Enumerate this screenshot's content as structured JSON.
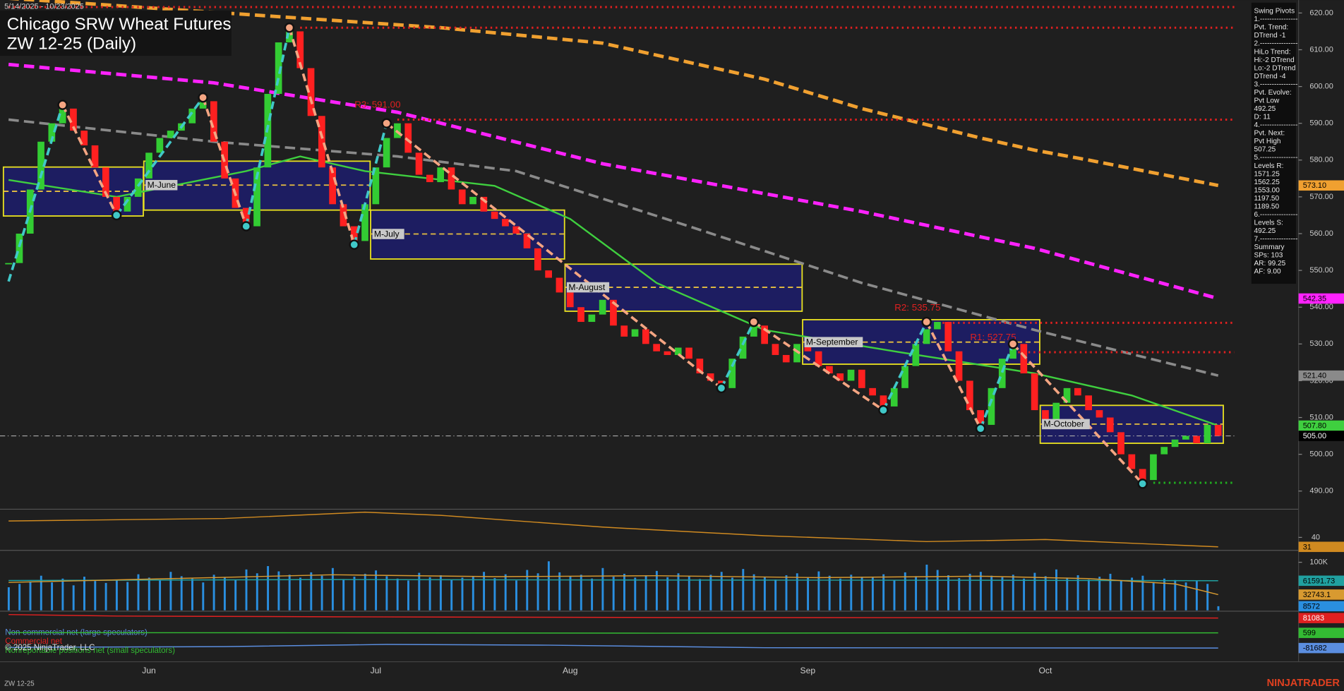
{
  "header": {
    "date_range": "5/14/2025 - 10/23/2025",
    "title": "Chicago SRW Wheat Futures",
    "subtitle": "ZW 12-25 (Daily)"
  },
  "chart_data": {
    "type": "candlestick",
    "categories": [
      null,
      null,
      null,
      null,
      null,
      null,
      null,
      null,
      null,
      null,
      null,
      null,
      null,
      "Jun",
      null,
      null,
      null,
      null,
      null,
      null,
      null,
      null,
      null,
      null,
      null,
      null,
      null,
      null,
      null,
      null,
      null,
      null,
      null,
      null,
      "Jul",
      null,
      null,
      null,
      null,
      null,
      null,
      null,
      null,
      null,
      null,
      null,
      null,
      null,
      null,
      null,
      null,
      null,
      "Aug",
      null,
      null,
      null,
      null,
      null,
      null,
      null,
      null,
      null,
      null,
      null,
      null,
      null,
      null,
      null,
      null,
      null,
      null,
      null,
      null,
      null,
      "Sep",
      null,
      null,
      null,
      null,
      null,
      null,
      null,
      null,
      null,
      null,
      null,
      null,
      null,
      null,
      null,
      null,
      null,
      null,
      null,
      null,
      null,
      "Oct",
      null,
      null,
      null,
      null,
      null,
      null,
      null,
      null,
      null,
      null,
      null,
      null,
      null,
      null,
      null,
      null
    ],
    "values": [
      552,
      560,
      572,
      585,
      590,
      594,
      588,
      584,
      578,
      570,
      566,
      570,
      575,
      582,
      586,
      588,
      590,
      594,
      596,
      585,
      575,
      567,
      562,
      578,
      598,
      612,
      615,
      605,
      592,
      578,
      568,
      562,
      558,
      568,
      578,
      586,
      590,
      582,
      576,
      574,
      578,
      572,
      568,
      570,
      566,
      564,
      562,
      560,
      556,
      550,
      548,
      544,
      540,
      536,
      538,
      542,
      535,
      532,
      534,
      530,
      528,
      527,
      529,
      526,
      522,
      520,
      518,
      526,
      532,
      535,
      530,
      527,
      525,
      530,
      528,
      524,
      522,
      520,
      523,
      518,
      516,
      513,
      518,
      524,
      530,
      534,
      536,
      528,
      520,
      512,
      508,
      518,
      526,
      530,
      522,
      512,
      508,
      514,
      518,
      516,
      512,
      510,
      506,
      500,
      496,
      493,
      500,
      502,
      504,
      505,
      503,
      508,
      505
    ],
    "up_color": "#33cc33",
    "down_color": "#ff2020",
    "ylim": [
      485.3,
      623.5
    ],
    "yticks": [
      {
        "value": 490,
        "label": "490.00"
      },
      {
        "value": 500,
        "label": "500.00"
      },
      {
        "value": 510,
        "label": "510.00"
      },
      {
        "value": 520,
        "label": "520.00"
      },
      {
        "value": 530,
        "label": "530.00"
      },
      {
        "value": 540,
        "label": "540.00"
      },
      {
        "value": 550,
        "label": "550.00"
      },
      {
        "value": 560,
        "label": "560.00"
      },
      {
        "value": 570,
        "label": "570.00"
      },
      {
        "value": 580,
        "label": "580.00"
      },
      {
        "value": 590,
        "label": "590.00"
      },
      {
        "value": 600,
        "label": "600.00"
      },
      {
        "value": 610,
        "label": "610.00"
      },
      {
        "value": 620,
        "label": "620.00"
      }
    ],
    "moving_averages": [
      {
        "color": "#f0a030",
        "width": 4,
        "x": [
          0,
          20,
          40,
          55,
          70,
          79,
          90,
          95,
          100,
          112
        ],
        "values": [
          624,
          620,
          616,
          611.8,
          602,
          594,
          586,
          582.7,
          580,
          573.1
        ],
        "last": {
          "value": 573.1,
          "label": "573.10"
        }
      },
      {
        "color": "#ff22ff",
        "width": 4,
        "x": [
          0,
          19,
          36,
          55,
          79,
          95,
          112
        ],
        "values": [
          606,
          601,
          593,
          579,
          566,
          556,
          542.35
        ],
        "last": {
          "value": 542.35,
          "label": "542.35"
        }
      },
      {
        "color": "#8a8a8a",
        "width": 3,
        "x": [
          0,
          19,
          36,
          47,
          63,
          79,
          95,
          112
        ],
        "values": [
          591,
          585,
          581,
          577,
          562,
          546.6,
          533.8,
          521.4
        ],
        "last": {
          "value": 521.4,
          "label": "521.40"
        }
      },
      {
        "color": "#3fcf3f",
        "width": 2,
        "x": [
          0,
          10,
          22,
          27,
          33,
          45,
          52,
          60,
          70,
          82,
          95,
          104,
          112
        ],
        "values": [
          574.6,
          570,
          577,
          581,
          577,
          573,
          564,
          546.6,
          533.8,
          528,
          522,
          516,
          507.8
        ],
        "last": {
          "value": 507.8,
          "label": "507.80"
        }
      }
    ],
    "last_price": {
      "value": 505,
      "label": "505.00"
    },
    "levels": [
      {
        "value": 621.6,
        "x": 0,
        "color": "#e02020"
      },
      {
        "value": 616,
        "x": 27,
        "color": "#e02020"
      },
      {
        "label": "R3: 591.00",
        "value": 591,
        "x": 36,
        "color": "#e02020"
      },
      {
        "label": "R2: 535.75",
        "value": 535.75,
        "x": 86,
        "color": "#e02020"
      },
      {
        "label": "R1: 527.75",
        "value": 527.75,
        "x": 93,
        "color": "#e02020"
      },
      {
        "value": 492.25,
        "x": 106,
        "color": "#20b020"
      }
    ],
    "zigzag": {
      "x": [
        0,
        5,
        10,
        18,
        22,
        26,
        32,
        35,
        66,
        69,
        81,
        85,
        90,
        93,
        105
      ],
      "values": [
        547,
        595,
        565,
        597,
        562,
        616,
        557,
        590,
        518,
        536,
        512,
        536,
        507,
        530,
        492
      ],
      "up_color": "#40c8c8",
      "down_color": "#f4a582"
    },
    "value_areas": [
      {
        "high": 578.1,
        "low": 564.8,
        "mid": 571.5
      },
      {
        "label": "M-June",
        "high": 579.7,
        "low": 566.4,
        "mid": 573.2
      },
      {
        "label": "M-July",
        "high": 566.4,
        "low": 553.1,
        "mid": 559.9
      },
      {
        "label": "M-August",
        "high": 551.7,
        "low": 538.9,
        "mid": 545.4
      },
      {
        "label": "M-September",
        "high": 536.6,
        "low": 524.5,
        "mid": 530.5
      },
      {
        "label": "M-October",
        "high": 513.3,
        "low": 503.0,
        "mid": 508.2
      }
    ],
    "oscillator": {
      "color": "#d08a20",
      "ylim": [
        28.5,
        66
      ],
      "yticks": [
        40
      ],
      "x": [
        0,
        20,
        33,
        40,
        55,
        70,
        85,
        96,
        105,
        112
      ],
      "values": [
        55.6,
        58,
        64,
        61,
        49.8,
        41.6,
        36,
        38,
        34,
        31
      ],
      "last": {
        "value": 31,
        "label": "31"
      }
    },
    "volume": {
      "color": "#2a8fe0",
      "ylim": [
        0,
        123000
      ],
      "yticks": [
        {
          "value": 100000,
          "label": "100K"
        }
      ],
      "values": [
        48000,
        55000,
        60000,
        72000,
        58000,
        66000,
        52000,
        70000,
        61000,
        57000,
        64000,
        59000,
        75000,
        68000,
        62000,
        80000,
        71000,
        66000,
        58000,
        74000,
        69000,
        63000,
        85000,
        77000,
        92000,
        81000,
        74000,
        68000,
        79000,
        72000,
        88000,
        65000,
        70000,
        76000,
        83000,
        71000,
        66000,
        62000,
        78000,
        69000,
        73000,
        64000,
        68000,
        71000,
        80000,
        67000,
        75000,
        62000,
        84000,
        77000,
        102000,
        79000,
        71000,
        74000,
        66000,
        88000,
        70000,
        76000,
        68000,
        73000,
        82000,
        69000,
        77000,
        71000,
        65000,
        74000,
        80000,
        68000,
        86000,
        75000,
        70000,
        64000,
        73000,
        77000,
        69000,
        81000,
        72000,
        66000,
        74000,
        70000,
        68000,
        75000,
        63000,
        79000,
        71000,
        95000,
        84000,
        73000,
        67000,
        76000,
        80000,
        72000,
        69000,
        74000,
        66000,
        78000,
        71000,
        85000,
        68000,
        73000,
        64000,
        70000,
        76000,
        62000,
        68000,
        72000,
        59000,
        66000,
        63000,
        58000,
        61000,
        55000,
        8572
      ],
      "last": {
        "value": 8572,
        "label": "8572"
      },
      "lines": [
        {
          "color": "#20a0a0",
          "x": [
            0,
            30,
            60,
            90,
            112
          ],
          "values": [
            62000,
            64000,
            63000,
            62500,
            61591.73
          ],
          "last": {
            "value": 61591.73,
            "label": "61591.73"
          }
        },
        {
          "color": "#d89a30",
          "x": [
            0,
            15,
            30,
            45,
            60,
            75,
            90,
            100,
            108,
            112
          ],
          "values": [
            58000,
            66000,
            74000,
            70000,
            72000,
            68000,
            71000,
            66000,
            55000,
            32743.1
          ],
          "last": {
            "value": 32743.1,
            "label": "32743.1"
          }
        }
      ]
    },
    "cot": {
      "ylim": [
        -146800,
        113640
      ],
      "series": [
        {
          "name": "Non-commercial net (large speculators)",
          "color": "#5b8ee0",
          "x": [
            0,
            20,
            35,
            50,
            70,
            112
          ],
          "values": [
            -78000,
            -74000,
            -62000,
            -66000,
            -80000,
            -81682
          ],
          "last": {
            "value": -81682,
            "label": "-81682"
          }
        },
        {
          "name": "Commercial net",
          "color": "#e02020",
          "x": [
            0,
            10,
            30,
            60,
            90,
            112
          ],
          "values": [
            100000,
            92000,
            88000,
            84000,
            83000,
            81083
          ],
          "last": {
            "value": 81083,
            "label": "81083"
          }
        },
        {
          "name": "Nonreportable positions net (small speculators)",
          "color": "#33bb33",
          "x": [
            0,
            30,
            60,
            90,
            112
          ],
          "values": [
            2000,
            1000,
            -1000,
            500,
            599
          ],
          "last": {
            "value": 599,
            "label": "599"
          }
        }
      ]
    }
  },
  "pivot_panel": {
    "lines": [
      "Swing Pivots",
      "1.----------------",
      "Pvt. Trend:",
      "DTrend -1",
      "2.----------------",
      "HiLo Trend:",
      "Hi:-2 DTrend",
      "Lo:-2 DTrend",
      "DTrend -4",
      "3.----------------",
      "Pvt. Evolve:",
      "Pvt Low",
      "492.25",
      "D: 11",
      "4.----------------",
      "Pvt. Next:",
      "Pvt High",
      "507.25",
      "5.----------------",
      "Levels R:",
      "1571.25",
      "1562.25",
      "1553.00",
      "1197.50",
      "1189.50",
      "6.----------------",
      "Levels S:",
      "492.25",
      "7.----------------",
      "Summary",
      "SPs: 103",
      "AR: 99.25",
      "AF: 9.00"
    ]
  },
  "footer": {
    "copyright": "© 2025 NinjaTrader, LLC",
    "symbol": "ZW 12-25",
    "brand": "NINJATRADER"
  }
}
